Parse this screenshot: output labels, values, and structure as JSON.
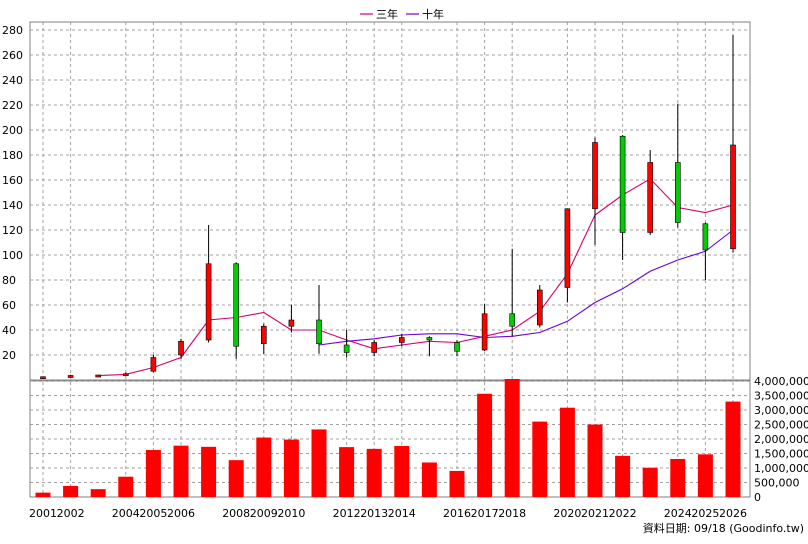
{
  "legend": {
    "items": [
      {
        "label": "三年",
        "color": "#d6006e"
      },
      {
        "label": "十年",
        "color": "#6a00d6"
      }
    ]
  },
  "source_note": "資料日期: 09/18 (Goodinfo.tw)",
  "chart_data": [
    {
      "type": "candlestick",
      "title": "",
      "ylim": [
        0,
        280
      ],
      "yticks": [
        20,
        40,
        60,
        80,
        100,
        120,
        140,
        160,
        180,
        200,
        220,
        240,
        260,
        280
      ],
      "grid": true,
      "legend_position": "top-center",
      "x_range": [
        2001,
        2026
      ],
      "up_color": "#ff0000",
      "down_color": "#00cc00",
      "candles": [
        {
          "year": 2001,
          "open": 2.4,
          "close": 2.6,
          "high": 2.8,
          "low": 2.2
        },
        {
          "year": 2002,
          "open": 3.4,
          "close": 3.6,
          "high": 4.2,
          "low": 3.0
        },
        {
          "year": 2003,
          "open": 3.6,
          "close": 4.0,
          "high": 4.2,
          "low": 3.4
        },
        {
          "year": 2004,
          "open": 4.0,
          "close": 5.0,
          "high": 6.0,
          "low": 3.8
        },
        {
          "year": 2005,
          "open": 7.0,
          "close": 18.0,
          "high": 20.0,
          "low": 6.0
        },
        {
          "year": 2006,
          "open": 20.0,
          "close": 31.0,
          "high": 33.0,
          "low": 17.0
        },
        {
          "year": 2007,
          "open": 32.0,
          "close": 93.0,
          "high": 124.0,
          "low": 30.0
        },
        {
          "year": 2008,
          "open": 93.0,
          "close": 27.0,
          "high": 94.0,
          "low": 17.0
        },
        {
          "year": 2009,
          "open": 29.0,
          "close": 43.0,
          "high": 45.0,
          "low": 21.0
        },
        {
          "year": 2010,
          "open": 43.0,
          "close": 48.0,
          "high": 60.0,
          "low": 38.0
        },
        {
          "year": 2011,
          "open": 48.0,
          "close": 29.0,
          "high": 76.0,
          "low": 21.0
        },
        {
          "year": 2012,
          "open": 28.0,
          "close": 22.0,
          "high": 40.0,
          "low": 18.0
        },
        {
          "year": 2013,
          "open": 22.0,
          "close": 30.0,
          "high": 32.0,
          "low": 19.0
        },
        {
          "year": 2014,
          "open": 30.0,
          "close": 34.0,
          "high": 37.0,
          "low": 27.0
        },
        {
          "year": 2015,
          "open": 34.0,
          "close": 32.0,
          "high": 35.0,
          "low": 19.0
        },
        {
          "year": 2016,
          "open": 30.0,
          "close": 23.0,
          "high": 32.0,
          "low": 19.0
        },
        {
          "year": 2017,
          "open": 24.0,
          "close": 53.0,
          "high": 61.0,
          "low": 23.0
        },
        {
          "year": 2018,
          "open": 53.0,
          "close": 43.0,
          "high": 105.0,
          "low": 35.0
        },
        {
          "year": 2019,
          "open": 44.0,
          "close": 72.0,
          "high": 76.0,
          "low": 42.0
        },
        {
          "year": 2020,
          "open": 74.0,
          "close": 137.0,
          "high": 137.0,
          "low": 62.0
        },
        {
          "year": 2021,
          "open": 137.0,
          "close": 190.0,
          "high": 194.0,
          "low": 108.0
        },
        {
          "year": 2022,
          "open": 195.0,
          "close": 118.0,
          "high": 196.0,
          "low": 96.0
        },
        {
          "year": 2023,
          "open": 118.0,
          "close": 174.0,
          "high": 184.0,
          "low": 116.0
        },
        {
          "year": 2024,
          "open": 174.0,
          "close": 126.0,
          "high": 221.0,
          "low": 122.0
        },
        {
          "year": 2025,
          "open": 125.0,
          "close": 104.0,
          "high": 126.0,
          "low": 80.0
        },
        {
          "year": 2026,
          "open": 105.0,
          "close": 188.0,
          "high": 276.0,
          "low": 102.0
        }
      ],
      "series": [
        {
          "name": "三年",
          "color": "#d6006e",
          "points": [
            [
              2003,
              3.5
            ],
            [
              2004,
              4.5
            ],
            [
              2005,
              10
            ],
            [
              2006,
              18
            ],
            [
              2007,
              48
            ],
            [
              2008,
              50
            ],
            [
              2009,
              54
            ],
            [
              2010,
              40
            ],
            [
              2011,
              40
            ],
            [
              2012,
              32
            ],
            [
              2013,
              25
            ],
            [
              2014,
              28
            ],
            [
              2015,
              31
            ],
            [
              2016,
              30
            ],
            [
              2017,
              35
            ],
            [
              2018,
              40
            ],
            [
              2019,
              55
            ],
            [
              2020,
              85
            ],
            [
              2021,
              132
            ],
            [
              2022,
              148
            ],
            [
              2023,
              161
            ],
            [
              2024,
              138
            ],
            [
              2025,
              134
            ],
            [
              2026,
              140
            ]
          ]
        },
        {
          "name": "十年",
          "color": "#6a00d6",
          "points": [
            [
              2011,
              28
            ],
            [
              2012,
              31
            ],
            [
              2013,
              33
            ],
            [
              2014,
              36
            ],
            [
              2015,
              37
            ],
            [
              2016,
              37
            ],
            [
              2017,
              34
            ],
            [
              2018,
              35
            ],
            [
              2019,
              38
            ],
            [
              2020,
              47
            ],
            [
              2021,
              62
            ],
            [
              2022,
              73
            ],
            [
              2023,
              87
            ],
            [
              2024,
              96
            ],
            [
              2025,
              103
            ],
            [
              2026,
              120
            ]
          ]
        }
      ]
    },
    {
      "type": "bar",
      "title": "",
      "ylim": [
        0,
        4000000
      ],
      "ytick_labels": [
        "0",
        "500,000",
        "1,000,000",
        "1,500,000",
        "2,000,000",
        "2,500,000",
        "3,000,000",
        "3,500,000",
        "4,000,000"
      ],
      "grid": true,
      "bar_color": "#ff0000",
      "x_tick_labels": [
        "2001",
        "2002",
        "2004",
        "2005",
        "2006",
        "2008",
        "2009",
        "2010",
        "2012",
        "2013",
        "2014",
        "2016",
        "2017",
        "2018",
        "2020",
        "2021",
        "2022",
        "2024",
        "2025",
        "2026"
      ],
      "categories": [
        2001,
        2002,
        2003,
        2004,
        2005,
        2006,
        2007,
        2008,
        2009,
        2010,
        2011,
        2012,
        2013,
        2014,
        2015,
        2016,
        2017,
        2018,
        2019,
        2020,
        2021,
        2022,
        2023,
        2024,
        2025,
        2026
      ],
      "values": [
        150000,
        380000,
        270000,
        700000,
        1620000,
        1770000,
        1730000,
        1270000,
        2050000,
        1980000,
        2330000,
        1720000,
        1660000,
        1760000,
        1190000,
        900000,
        3560000,
        4100000,
        2600000,
        3080000,
        2500000,
        1420000,
        1010000,
        1310000,
        1470000,
        3290000
      ]
    }
  ]
}
